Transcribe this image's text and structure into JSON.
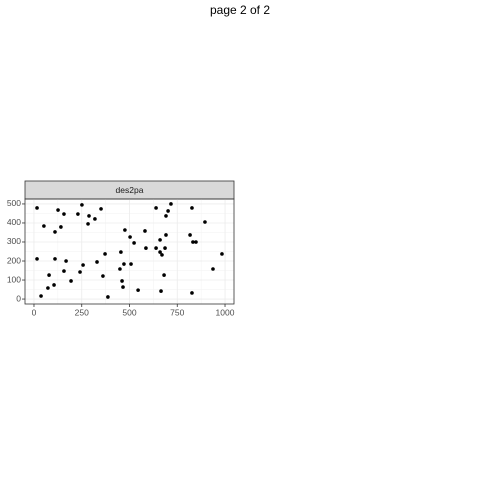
{
  "page_title": "page 2 of 2",
  "chart_data": {
    "type": "scatter",
    "facet": "des2pa",
    "color": "#000000",
    "grid": true,
    "x": [
      16,
      16,
      37,
      52,
      73,
      79,
      105,
      110,
      110,
      126,
      141,
      157,
      157,
      168,
      194,
      230,
      241,
      251,
      257,
      283,
      288,
      319,
      330,
      351,
      361,
      372,
      387,
      450,
      455,
      461,
      466,
      471,
      476,
      503,
      508,
      524,
      545,
      581,
      586,
      639,
      639,
      660,
      660,
      665,
      670,
      681,
      686,
      691,
      691,
      702,
      717,
      817,
      827,
      827,
      832,
      848,
      895,
      937,
      984
    ],
    "values": [
      479,
      211,
      16,
      384,
      58,
      126,
      74,
      211,
      353,
      468,
      379,
      447,
      147,
      200,
      95,
      447,
      142,
      495,
      179,
      395,
      437,
      421,
      195,
      474,
      121,
      237,
      11,
      158,
      247,
      95,
      63,
      184,
      363,
      326,
      184,
      295,
      47,
      358,
      268,
      479,
      268,
      311,
      247,
      42,
      232,
      126,
      268,
      337,
      437,
      463,
      500,
      337,
      479,
      32,
      300,
      300,
      405,
      158,
      237
    ],
    "xlim": [
      -47,
      1047
    ],
    "xticks": [
      0,
      250,
      500,
      750,
      1000
    ],
    "ylim": [
      -26,
      526
    ],
    "yticks": [
      0,
      100,
      200,
      300,
      400,
      500
    ]
  }
}
